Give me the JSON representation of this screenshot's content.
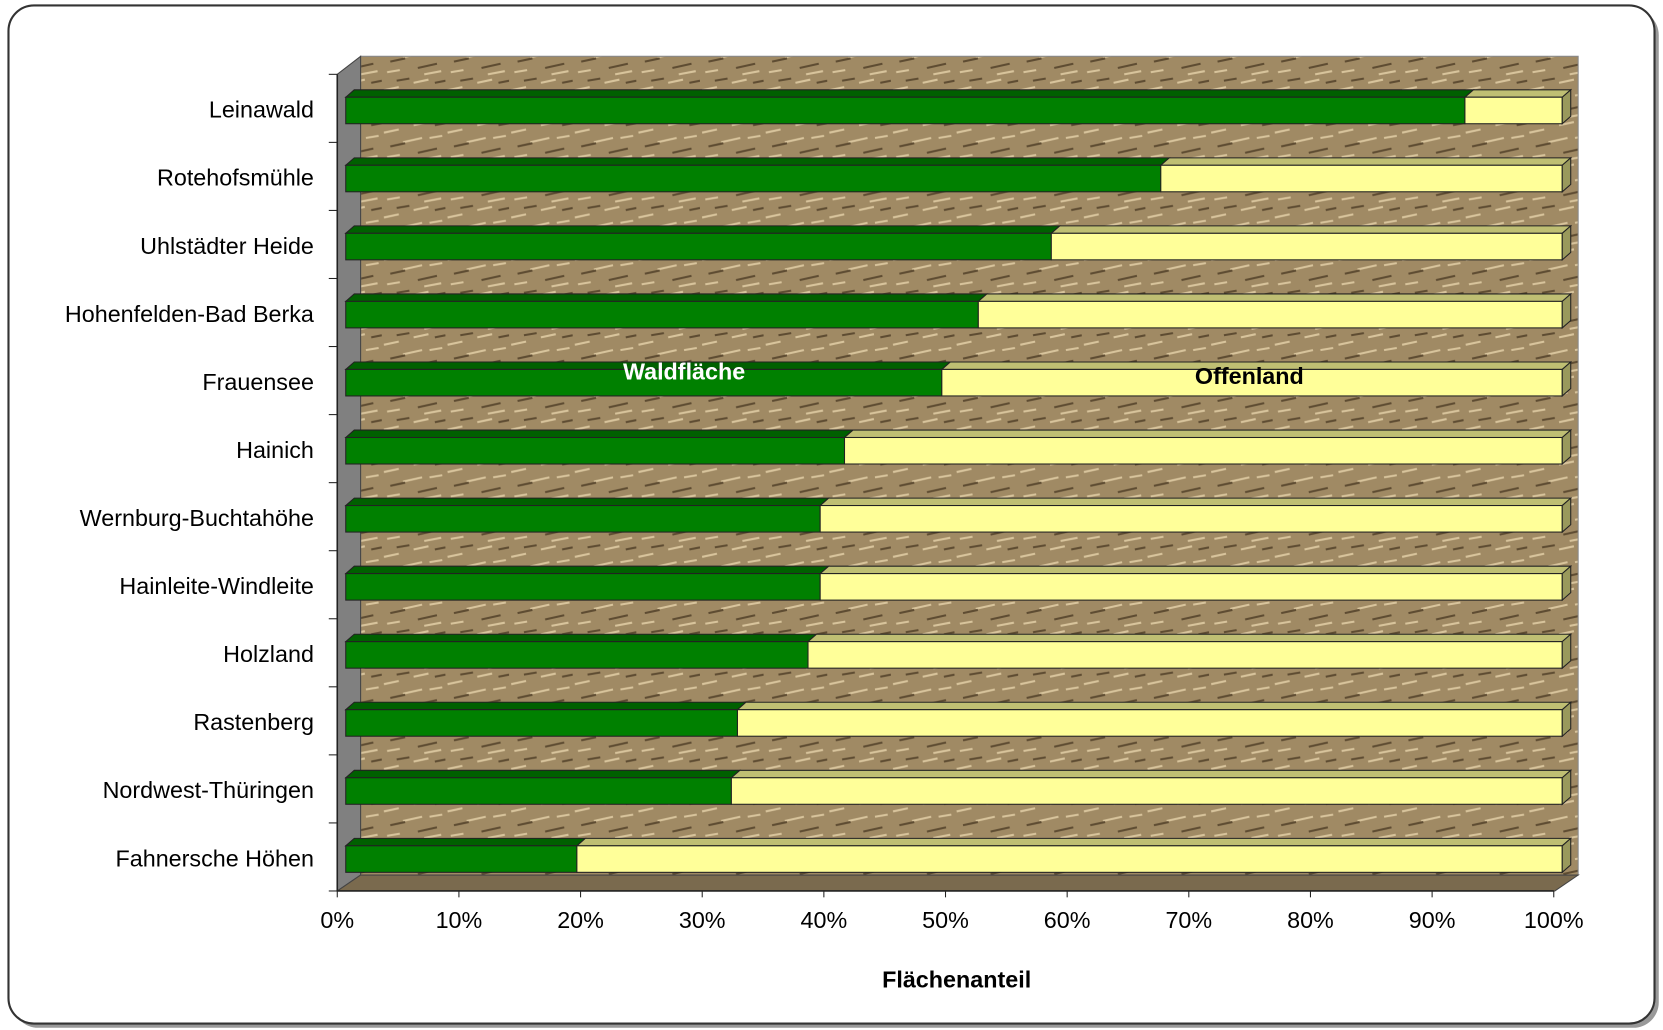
{
  "chart_data": {
    "type": "bar",
    "orientation": "horizontal",
    "stacked": true,
    "x_label": "Flächenanteil",
    "categories": [
      "Leinawald",
      "Rotehofsmühle",
      "Uhlstädter Heide",
      "Hohenfelden-Bad Berka",
      "Frauensee",
      "Hainich",
      "Wernburg-Buchtahöhe",
      "Hainleite-Windleite",
      "Holzland",
      "Rastenberg",
      "Nordwest-Thüringen",
      "Fahnersche Höhen"
    ],
    "series": [
      {
        "name": "Waldfläche",
        "color": "#008000",
        "values": [
          92,
          67,
          58,
          52,
          49,
          41,
          39,
          39,
          38,
          32.2,
          31.7,
          19
        ]
      },
      {
        "name": "Offenland",
        "color": "#ffff99",
        "values": [
          8,
          33,
          42,
          48,
          51,
          59,
          61,
          61,
          62,
          67.8,
          68.3,
          81
        ]
      }
    ],
    "xlim": [
      0,
      100
    ],
    "xticks": [
      {
        "value": 0,
        "label": "0%"
      },
      {
        "value": 10,
        "label": "10%"
      },
      {
        "value": 20,
        "label": "20%"
      },
      {
        "value": 30,
        "label": "30%"
      },
      {
        "value": 40,
        "label": "40%"
      },
      {
        "value": 50,
        "label": "50%"
      },
      {
        "value": 60,
        "label": "60%"
      },
      {
        "value": 70,
        "label": "70%"
      },
      {
        "value": 80,
        "label": "80%"
      },
      {
        "value": 90,
        "label": "90%"
      },
      {
        "value": 100,
        "label": "100%"
      }
    ],
    "grid": false
  }
}
